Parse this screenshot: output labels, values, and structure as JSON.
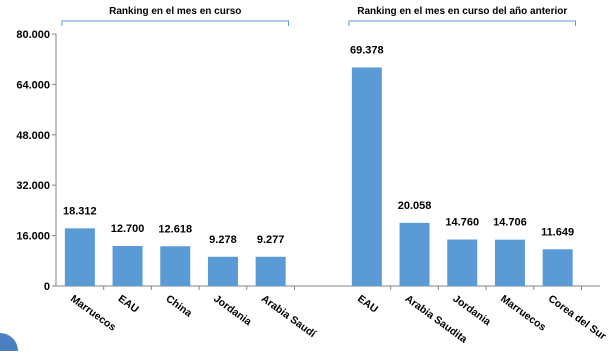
{
  "chart_data": {
    "type": "bar",
    "groups": [
      {
        "title": "Ranking en el mes en curso",
        "categories": [
          "Marruecos",
          "EAU",
          "China",
          "Jordania",
          "Arabia Saudí"
        ],
        "values": [
          18312,
          12700,
          12618,
          9278,
          9277
        ],
        "labels": [
          "18.312",
          "12.700",
          "12.618",
          "9.278",
          "9.277"
        ]
      },
      {
        "title": "Ranking en el mes en curso del año anterior",
        "categories": [
          "EAU",
          "Arabia Saudita",
          "Jordania",
          "Marruecos",
          "Corea del Sur"
        ],
        "values": [
          69378,
          20058,
          14760,
          14706,
          11649
        ],
        "labels": [
          "69.378",
          "20.058",
          "14.760",
          "14.706",
          "11.649"
        ]
      }
    ],
    "yticks": [
      "0",
      "16.000",
      "32.000",
      "48.000",
      "64.000",
      "80.000"
    ],
    "ylim": [
      0,
      80000
    ],
    "grid": false,
    "bar_color": "#5b9bd5",
    "bracket_color": "#5b9bd5"
  }
}
